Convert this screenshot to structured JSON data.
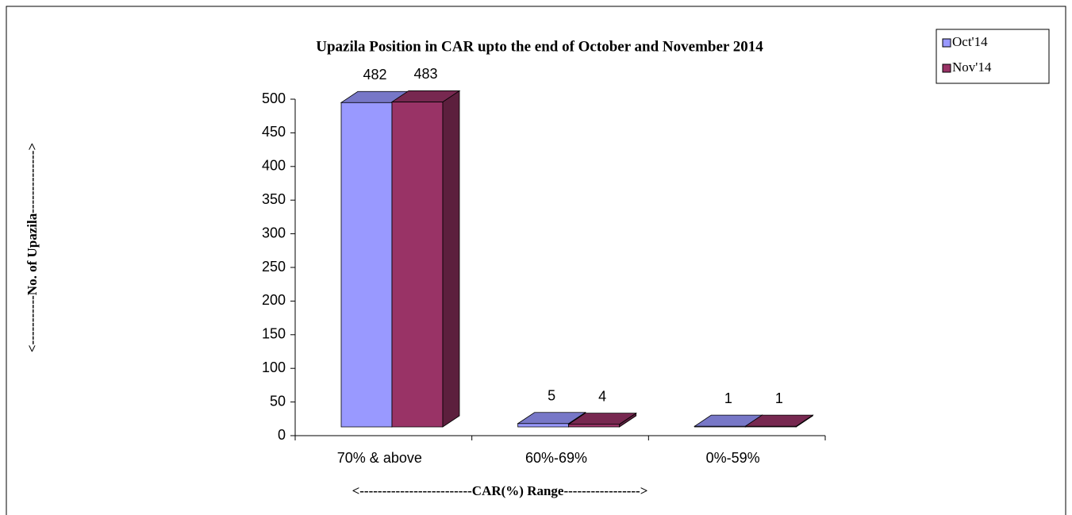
{
  "chart_data": {
    "type": "bar3d",
    "title": "Upazila Position in CAR upto the end of  October and November 2014",
    "x_label": "<-------------------------CAR(%) Range----------------->",
    "y_label": "<-----------No. of Upazila-------------->",
    "categories": [
      "70% & above",
      "60%-69%",
      "0%-59%"
    ],
    "series": [
      {
        "name": "Oct'14",
        "color": "#9999ff",
        "values": [
          482,
          5,
          1
        ]
      },
      {
        "name": "Nov'14",
        "color": "#993366",
        "values": [
          483,
          4,
          1
        ]
      }
    ],
    "ylim": [
      0,
      500
    ],
    "yticks": [
      0,
      50,
      100,
      150,
      200,
      250,
      300,
      350,
      400,
      450,
      500
    ],
    "legend": "top-right"
  }
}
